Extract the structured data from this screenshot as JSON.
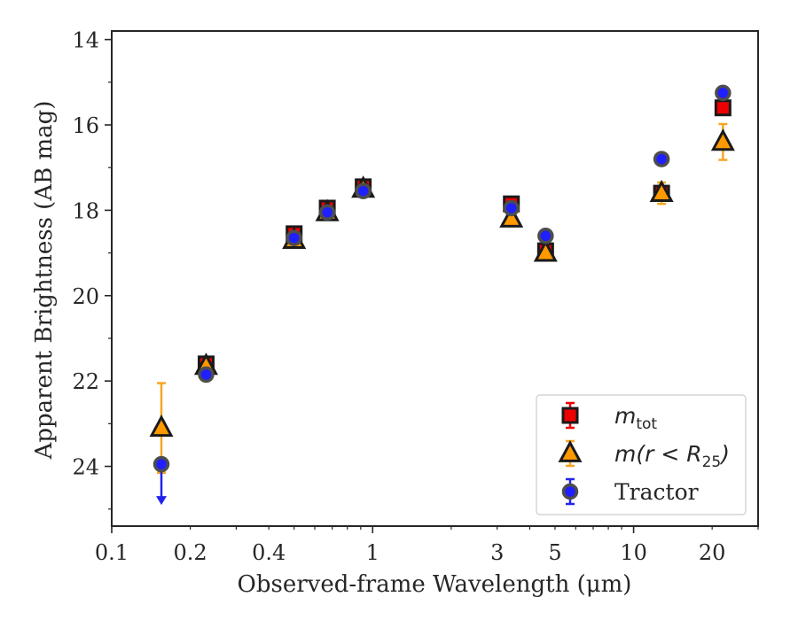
{
  "chart_data": {
    "type": "scatter",
    "xscale": "log",
    "yinverted": true,
    "xlabel": "Observed-frame Wavelength (μm)",
    "ylabel": "Apparent Brightness (AB mag)",
    "xlim": [
      0.1,
      30
    ],
    "ylim": [
      25.4,
      13.8
    ],
    "grid": false,
    "legend_position": "lower-right",
    "xticks": [
      {
        "value": 0.1,
        "label": "0.1"
      },
      {
        "value": 0.2,
        "label": "0.2"
      },
      {
        "value": 0.4,
        "label": "0.4"
      },
      {
        "value": 1,
        "label": "1"
      },
      {
        "value": 3,
        "label": "3"
      },
      {
        "value": 5,
        "label": "5"
      },
      {
        "value": 10,
        "label": "10"
      },
      {
        "value": 20,
        "label": "20"
      }
    ],
    "yticks": [
      {
        "value": 14,
        "label": "14"
      },
      {
        "value": 16,
        "label": "16"
      },
      {
        "value": 18,
        "label": "18"
      },
      {
        "value": 20,
        "label": "20"
      },
      {
        "value": 22,
        "label": "22"
      },
      {
        "value": 24,
        "label": "24"
      }
    ],
    "series": [
      {
        "name": "m_tot",
        "legend_label": "m",
        "legend_sub": "tot",
        "marker": "square",
        "color": "#ee0000",
        "edge": "#1a1a1a",
        "errcolor": "#ee0000",
        "points": [
          {
            "x": 0.23,
            "y": 21.6,
            "err": 0.1
          },
          {
            "x": 0.5,
            "y": 18.55,
            "err": 0.1
          },
          {
            "x": 0.67,
            "y": 17.95,
            "err": 0.1
          },
          {
            "x": 0.92,
            "y": 17.45,
            "err": 0.1
          },
          {
            "x": 3.4,
            "y": 17.85,
            "err": 0.1
          },
          {
            "x": 4.6,
            "y": 18.95,
            "err": 0.1
          },
          {
            "x": 12.8,
            "y": 17.6,
            "err": 0.1
          },
          {
            "x": 22.0,
            "y": 15.6,
            "err": 0.1
          }
        ]
      },
      {
        "name": "m(r < R_25)",
        "legend_label": "m(r < R",
        "legend_sub": "25",
        "legend_tail": ")",
        "marker": "triangle",
        "color": "#ff9900",
        "edge": "#1a1a1a",
        "errcolor": "#f5a623",
        "points": [
          {
            "x": 0.155,
            "y": 23.1,
            "err": 1.05
          },
          {
            "x": 0.23,
            "y": 21.65,
            "err": 0.1
          },
          {
            "x": 0.5,
            "y": 18.7,
            "err": 0.05
          },
          {
            "x": 0.67,
            "y": 18.05,
            "err": 0.05
          },
          {
            "x": 0.92,
            "y": 17.5,
            "err": 0.05
          },
          {
            "x": 3.4,
            "y": 18.2,
            "err": 0.05
          },
          {
            "x": 4.6,
            "y": 19.0,
            "err": 0.1
          },
          {
            "x": 12.8,
            "y": 17.6,
            "err": 0.25
          },
          {
            "x": 22.0,
            "y": 16.4,
            "err": 0.42
          }
        ]
      },
      {
        "name": "Tractor",
        "legend_label": "Tractor",
        "marker": "circle",
        "color": "#1f1fff",
        "edge": "#4d4d4d",
        "errcolor": "#2222ee",
        "points": [
          {
            "x": 0.155,
            "y": 23.95,
            "upper_limit": true
          },
          {
            "x": 0.23,
            "y": 21.85,
            "err": 0.05
          },
          {
            "x": 0.5,
            "y": 18.65,
            "err": 0.05
          },
          {
            "x": 0.67,
            "y": 18.05,
            "err": 0.05
          },
          {
            "x": 0.92,
            "y": 17.55,
            "err": 0.05
          },
          {
            "x": 3.4,
            "y": 17.95,
            "err": 0.05
          },
          {
            "x": 4.6,
            "y": 18.6,
            "err": 0.05
          },
          {
            "x": 12.8,
            "y": 16.8,
            "err": 0.05
          },
          {
            "x": 22.0,
            "y": 15.25,
            "err": 0.05
          }
        ]
      }
    ]
  }
}
